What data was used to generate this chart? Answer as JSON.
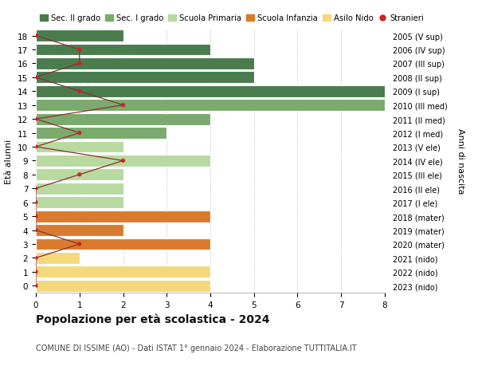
{
  "ages": [
    18,
    17,
    16,
    15,
    14,
    13,
    12,
    11,
    10,
    9,
    8,
    7,
    6,
    5,
    4,
    3,
    2,
    1,
    0
  ],
  "right_labels": [
    "2005 (V sup)",
    "2006 (IV sup)",
    "2007 (III sup)",
    "2008 (II sup)",
    "2009 (I sup)",
    "2010 (III med)",
    "2011 (II med)",
    "2012 (I med)",
    "2013 (V ele)",
    "2014 (IV ele)",
    "2015 (III ele)",
    "2016 (II ele)",
    "2017 (I ele)",
    "2018 (mater)",
    "2019 (mater)",
    "2020 (mater)",
    "2021 (nido)",
    "2022 (nido)",
    "2023 (nido)"
  ],
  "bar_values": [
    2,
    4,
    5,
    5,
    8,
    8,
    4,
    3,
    2,
    4,
    2,
    2,
    2,
    4,
    2,
    4,
    1,
    4,
    4
  ],
  "bar_colors": [
    "#4a7c4e",
    "#4a7c4e",
    "#4a7c4e",
    "#4a7c4e",
    "#4a7c4e",
    "#7aaa6e",
    "#7aaa6e",
    "#7aaa6e",
    "#b8d9a0",
    "#b8d9a0",
    "#b8d9a0",
    "#b8d9a0",
    "#b8d9a0",
    "#d97b2e",
    "#d97b2e",
    "#d97b2e",
    "#f5d87a",
    "#f5d87a",
    "#f5d87a"
  ],
  "stranieri_values": [
    0,
    1,
    1,
    0,
    1,
    2,
    0,
    1,
    0,
    2,
    1,
    0,
    0,
    0,
    0,
    1,
    0,
    0,
    0
  ],
  "stranieri_line_color": "#8b3030",
  "stranieri_marker_color": "#cc2222",
  "xlim": [
    0,
    8
  ],
  "ylim": [
    -0.5,
    18.5
  ],
  "ylabel": "Età alunni",
  "right_ylabel": "Anni di nascita",
  "title": "Popolazione per età scolastica - 2024",
  "subtitle": "COMUNE DI ISSIME (AO) - Dati ISTAT 1° gennaio 2024 - Elaborazione TUTTITALIA.IT",
  "legend_labels": [
    "Sec. II grado",
    "Sec. I grado",
    "Scuola Primaria",
    "Scuola Infanzia",
    "Asilo Nido",
    "Stranieri"
  ],
  "legend_colors": [
    "#4a7c4e",
    "#7aaa6e",
    "#b8d9a0",
    "#d97b2e",
    "#f5d87a",
    "#cc2222"
  ],
  "bg_color": "#ffffff",
  "grid_color": "#cccccc",
  "xticks": [
    0,
    1,
    2,
    3,
    4,
    5,
    6,
    7,
    8
  ]
}
